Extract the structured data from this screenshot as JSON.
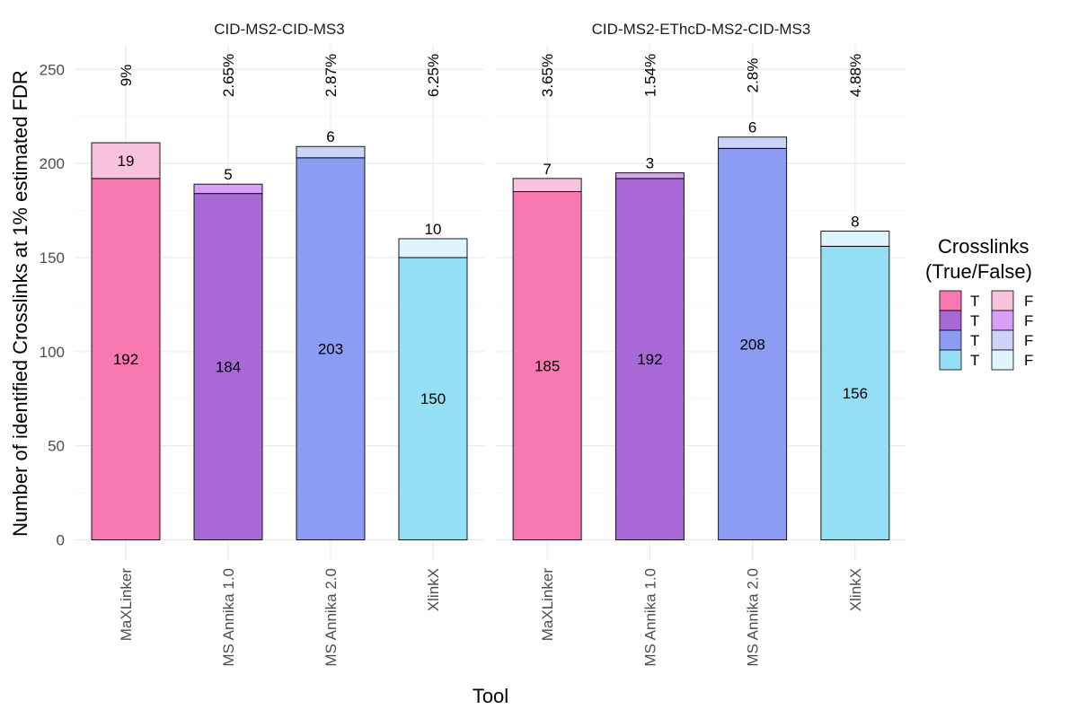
{
  "chart_data": {
    "type": "bar",
    "stacked": true,
    "xlabel": "Tool",
    "ylabel": "Number of identified Crosslinks at 1% estimated FDR",
    "ylim": [
      0,
      260
    ],
    "yticks": [
      "0",
      "50",
      "100",
      "150",
      "200",
      "250"
    ],
    "grid": true,
    "legend": {
      "title_lines": [
        "Crosslinks",
        "(True/False)"
      ],
      "placement": "right",
      "true_label": "T",
      "false_label": "F"
    },
    "categories": [
      "MaXLinker",
      "MS Annika 1.0",
      "MS Annika 2.0",
      "XlinkX"
    ],
    "colors": {
      "true": [
        "#f879b1",
        "#a869d6",
        "#8d9cf3",
        "#95dff5"
      ],
      "false": [
        "#f9c3de",
        "#d7a0f6",
        "#cdd3f7",
        "#dff5fd"
      ]
    },
    "panels": [
      {
        "title": "CID-MS2-CID-MS3",
        "true_values": [
          192,
          184,
          203,
          150
        ],
        "false_values": [
          19,
          5,
          6,
          10
        ],
        "true_labels": [
          "192",
          "184",
          "203",
          "150"
        ],
        "false_labels": [
          "19",
          "5",
          "6",
          "10"
        ],
        "fdr_labels": [
          "9%",
          "2.65%",
          "2.87%",
          "6.25%"
        ]
      },
      {
        "title": "CID-MS2-EThcD-MS2-CID-MS3",
        "true_values": [
          185,
          192,
          208,
          156
        ],
        "false_values": [
          7,
          3,
          6,
          8
        ],
        "true_labels": [
          "185",
          "192",
          "208",
          "156"
        ],
        "false_labels": [
          "7",
          "3",
          "6",
          "8"
        ],
        "fdr_labels": [
          "3.65%",
          "1.54%",
          "2.8%",
          "4.88%"
        ]
      }
    ]
  }
}
